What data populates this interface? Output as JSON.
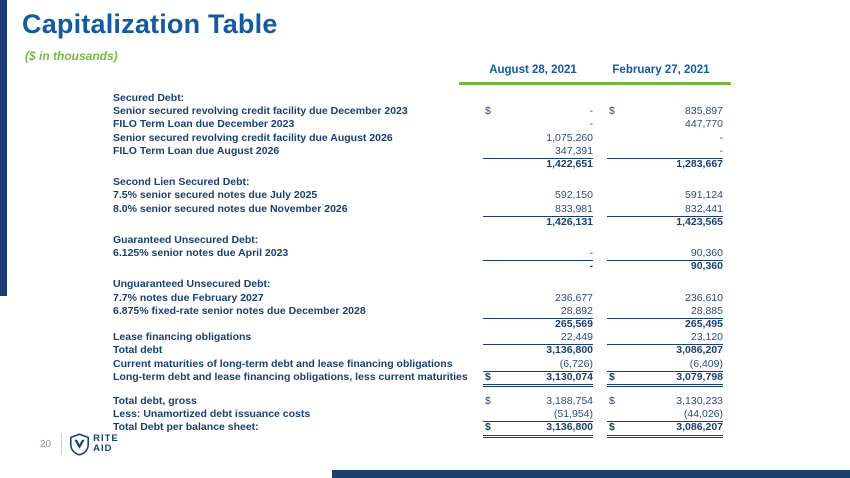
{
  "slide": {
    "title": "Capitalization Table",
    "subtitle": "($ in thousands)",
    "page_number": "20",
    "logo": {
      "line1": "RITE",
      "line2": "AID"
    }
  },
  "colors": {
    "navy": "#1b3f72",
    "title_blue": "#1559a0",
    "green": "#79b63f",
    "num_blue": "#2b4b80"
  },
  "table": {
    "col_headers": [
      "August 28, 2021",
      "February 27, 2021"
    ],
    "rows": [
      {
        "label": "Secured Debt:",
        "section": true
      },
      {
        "label": "Senior secured revolving credit facility due December 2023",
        "d1": "$",
        "v1": "-",
        "d2": "$",
        "v2": "835,897"
      },
      {
        "label": "FILO Term Loan due December 2023",
        "v1": "-",
        "v2": "447,770"
      },
      {
        "label": "Senior secured revolving credit facility due August 2026",
        "v1": "1,075,260",
        "v2": "-"
      },
      {
        "label": "FILO Term Loan due August 2026",
        "v1": "347,391",
        "v2": "-",
        "u": "single"
      },
      {
        "label": "",
        "v1": "1,422,651",
        "v2": "1,283,667",
        "bold": true
      },
      {
        "label": "Second Lien Secured Debt:",
        "section": true,
        "gap": 5
      },
      {
        "label": "7.5% senior secured notes due July 2025",
        "v1": "592,150",
        "v2": "591,124"
      },
      {
        "label": "8.0% senior secured notes due November 2026",
        "v1": "833,981",
        "v2": "832,441",
        "u": "single"
      },
      {
        "label": "",
        "v1": "1,426,131",
        "v2": "1,423,565",
        "bold": true
      },
      {
        "label": "Guaranteed Unsecured Debt:",
        "section": true,
        "gap": 5
      },
      {
        "label": "6.125% senior notes due April 2023",
        "v1": "-",
        "v2": "90,360",
        "u": "single"
      },
      {
        "label": "",
        "v1": "-",
        "v2": "90,360",
        "bold": true
      },
      {
        "label": "Unguaranteed Unsecured Debt:",
        "section": true,
        "gap": 5
      },
      {
        "label": "7.7% notes due February 2027",
        "v1": "236,677",
        "v2": "236,610"
      },
      {
        "label": "6.875% fixed-rate senior notes due December 2028",
        "v1": "28,892",
        "v2": "28,885",
        "u": "single"
      },
      {
        "label": "",
        "v1": "265,569",
        "v2": "265,495",
        "bold": true
      },
      {
        "label": "Lease financing obligations",
        "v1": "22,449",
        "v2": "23,120",
        "u": "single"
      },
      {
        "label": "Total debt",
        "v1": "3,136,800",
        "v2": "3,086,207",
        "bold": true
      },
      {
        "label": "Current maturities of long-term debt and lease financing obligations",
        "v1": "(6,726)",
        "v2": "(6,409)",
        "u": "single"
      },
      {
        "label": "Long-term debt and lease financing obligations, less current maturities",
        "d1": "$",
        "v1": "3,130,074",
        "d2": "$",
        "v2": "3,079,798",
        "bold": true,
        "u": "double"
      },
      {
        "label": "Total debt, gross",
        "d1": "$",
        "v1": "3,188,754",
        "d2": "$",
        "v2": "3,130,233",
        "gap": 11
      },
      {
        "label": "Less: Unamortized debt issuance costs",
        "v1": "(51,954)",
        "v2": "(44,026)",
        "u": "single"
      },
      {
        "label": "Total Debt per balance sheet:",
        "d1": "$",
        "v1": "3,136,800",
        "d2": "$",
        "v2": "3,086,207",
        "bold": true,
        "u": "double"
      }
    ]
  }
}
